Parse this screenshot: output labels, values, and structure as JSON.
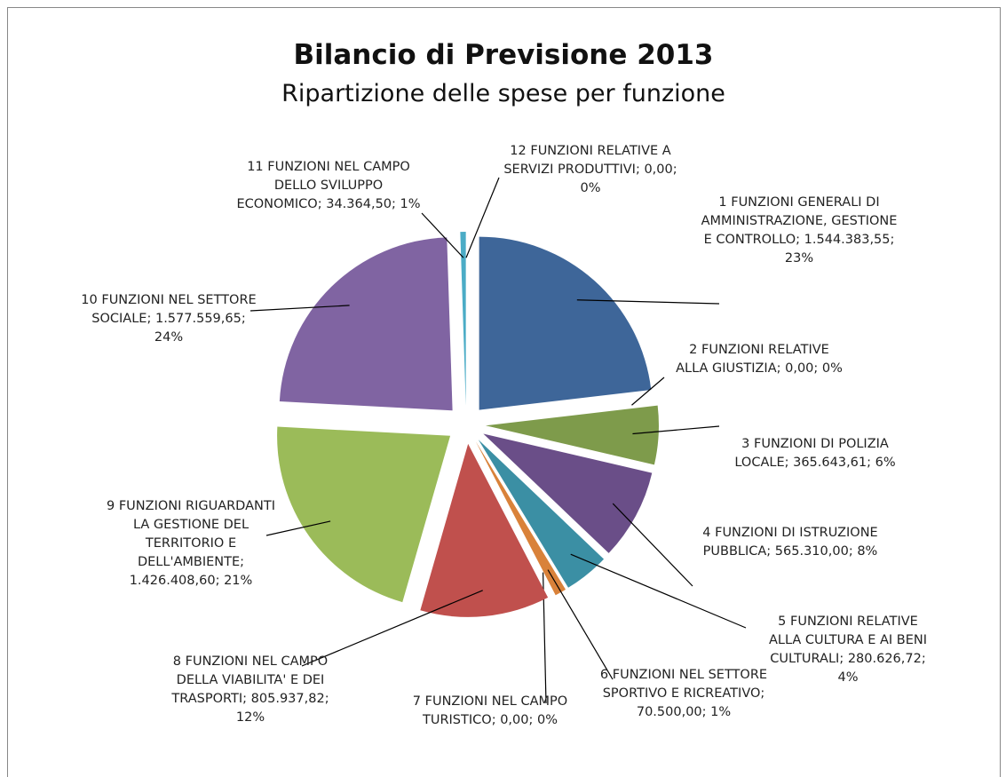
{
  "chart_data": {
    "type": "pie",
    "title": "Bilancio di Previsione 2013",
    "subtitle": "Ripartizione delle spese per funzione",
    "categories": [
      "1 FUNZIONI GENERALI DI AMMINISTRAZIONE, GESTIONE E CONTROLLO",
      "2 FUNZIONI RELATIVE ALLA GIUSTIZIA",
      "3 FUNZIONI DI POLIZIA LOCALE",
      "4 FUNZIONI DI ISTRUZIONE PUBBLICA",
      "5 FUNZIONI RELATIVE ALLA CULTURA E AI BENI CULTURALI",
      "6 FUNZIONI NEL SETTORE SPORTIVO E RICREATIVO",
      "7 FUNZIONI NEL CAMPO TURISTICO",
      "8 FUNZIONI NEL CAMPO DELLA VIABILITA' E DEI TRASPORTI",
      "9 FUNZIONI RIGUARDANTI LA GESTIONE DEL TERRITORIO E DELL'AMBIENTE",
      "10 FUNZIONI NEL SETTORE SOCIALE",
      "11 FUNZIONI NEL CAMPO DELLO SVILUPPO ECONOMICO",
      "12 FUNZIONI RELATIVE A SERVIZI PRODUTTIVI"
    ],
    "values": [
      1544383.55,
      0,
      365643.61,
      565310,
      280626.72,
      70500,
      0,
      805937.82,
      1426408.6,
      1577559.65,
      34364.5,
      0
    ],
    "value_labels": [
      "1.544.383,55",
      "0,00",
      "365.643,61",
      "565.310,00",
      "280.626,72",
      "70.500,00",
      "0,00",
      "805.937,82",
      "1.426.408,60",
      "1.577.559,65",
      "34.364,50",
      "0,00"
    ],
    "percent_labels": [
      "23%",
      "0%",
      "6%",
      "8%",
      "4%",
      "1%",
      "0%",
      "12%",
      "21%",
      "24%",
      "1%",
      "0%"
    ],
    "colors": [
      "#3e6699",
      "#b04a47",
      "#7e9b4b",
      "#6a4e88",
      "#3b8fa4",
      "#d9823a",
      "#8aa4cc",
      "#c0504d",
      "#9bbb59",
      "#8064a2",
      "#4bacc6",
      "#f79646"
    ]
  }
}
